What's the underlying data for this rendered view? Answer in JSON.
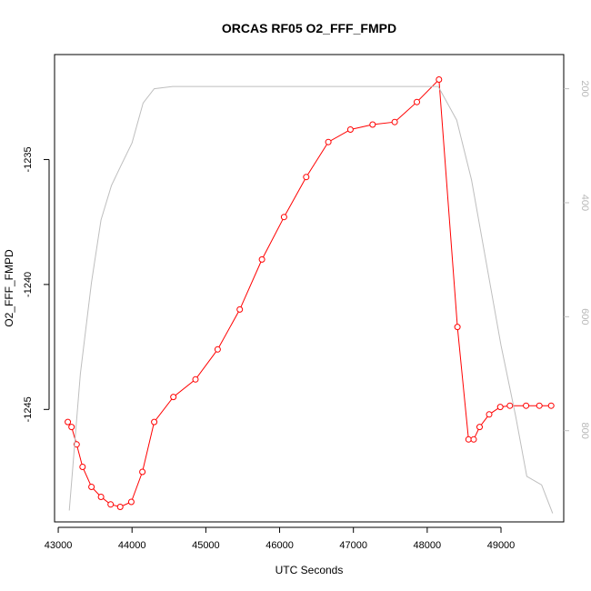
{
  "chart_data": {
    "type": "line",
    "title": "ORCAS RF05 O2_FFF_FMPD",
    "xlabel": "UTC Seconds",
    "ylabel": "O2_FFF_FMPD",
    "xlim": [
      42950,
      49850
    ],
    "ylim": [
      -1249.5,
      -1230.8
    ],
    "x_ticks": [
      43000,
      44000,
      45000,
      46000,
      47000,
      48000,
      49000
    ],
    "y_ticks": [
      -1235,
      -1240,
      -1245
    ],
    "secondary_axis": {
      "ylim": [
        960,
        140
      ],
      "ticks": [
        200,
        400,
        600,
        800
      ],
      "color": "#bebebe"
    },
    "grid": false,
    "series": [
      {
        "color": "#ff0000",
        "marker": "open-circle",
        "axis": "left",
        "x": [
          43130,
          43180,
          43250,
          43330,
          43450,
          43580,
          43710,
          43840,
          43990,
          44140,
          44300,
          44560,
          44860,
          45160,
          45460,
          45760,
          46060,
          46360,
          46660,
          46960,
          47260,
          47560,
          47860,
          48160,
          48410,
          48560,
          48630,
          48710,
          48840,
          48990,
          49120,
          49340,
          49520,
          49680
        ],
        "y": [
          -1245.5,
          -1245.7,
          -1246.4,
          -1247.3,
          -1248.1,
          -1248.5,
          -1248.8,
          -1248.9,
          -1248.7,
          -1247.5,
          -1245.5,
          -1244.5,
          -1243.8,
          -1242.6,
          -1241.0,
          -1239.0,
          -1237.3,
          -1235.7,
          -1234.3,
          -1233.8,
          -1233.6,
          -1233.5,
          -1232.7,
          -1231.8,
          -1241.7,
          -1246.2,
          -1246.2,
          -1245.7,
          -1245.2,
          -1244.9,
          -1244.85,
          -1244.85,
          -1244.85,
          -1244.85
        ]
      },
      {
        "color": "#bebebe",
        "marker": "none",
        "axis": "right",
        "x": [
          43150,
          43300,
          43450,
          43580,
          43720,
          43850,
          44000,
          44150,
          44300,
          44550,
          45000,
          46000,
          47000,
          48000,
          48150,
          48400,
          48600,
          48800,
          49000,
          49200,
          49350,
          49550,
          49700
        ],
        "y": [
          940,
          700,
          540,
          430,
          370,
          335,
          295,
          225,
          200,
          196,
          196,
          196,
          196,
          196,
          196,
          255,
          360,
          505,
          650,
          775,
          880,
          895,
          945
        ]
      }
    ]
  }
}
